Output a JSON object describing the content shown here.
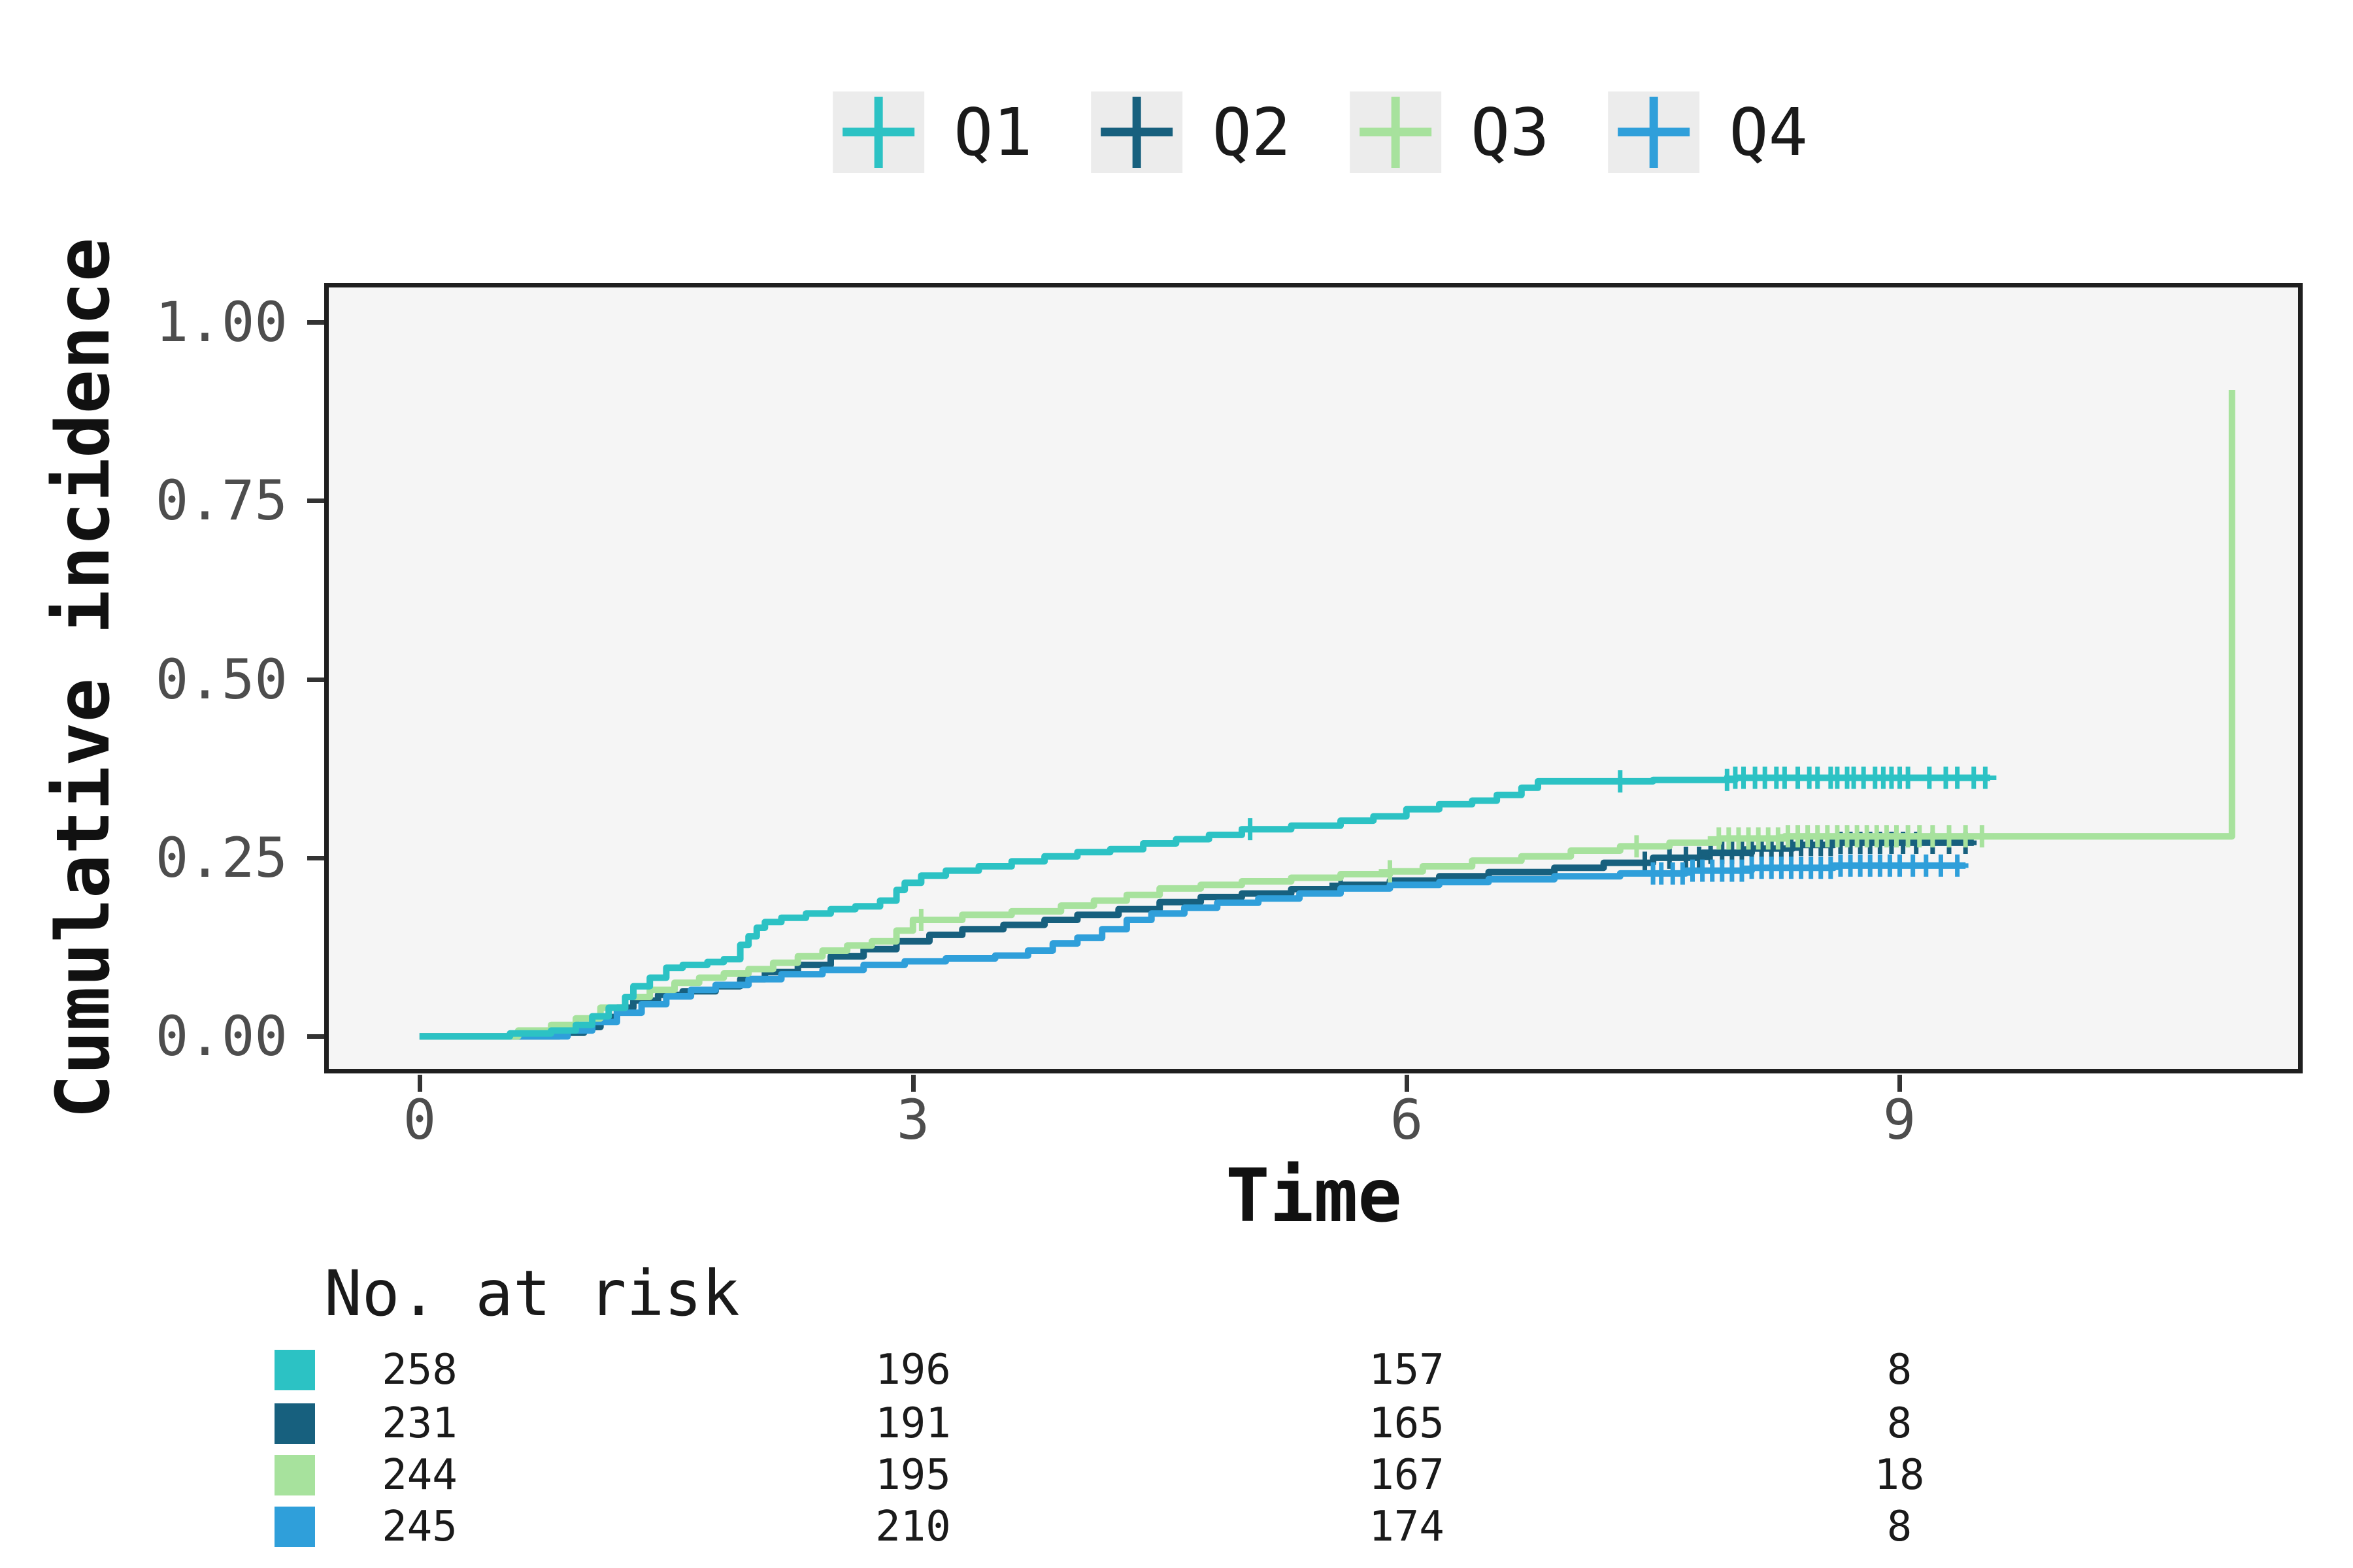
{
  "chart_data": {
    "type": "line",
    "subtype": "step-cumulative-incidence",
    "title": "",
    "xlabel": "Time",
    "ylabel": "Cumulative incidence",
    "x_ticks": [
      0,
      3,
      6,
      9
    ],
    "x_tick_labels": [
      "0",
      "3",
      "6",
      "9"
    ],
    "y_ticks": [
      0.0,
      0.25,
      0.5,
      0.75,
      1.0
    ],
    "y_tick_labels": [
      "0.00",
      "0.25",
      "0.50",
      "0.75",
      "1.00"
    ],
    "x_domain": [
      -0.58,
      11.45
    ],
    "y_domain": [
      -0.052,
      1.055
    ],
    "grid": false,
    "legend_position": "top",
    "panel_bg": "#F5F5F5",
    "frame_color": "#1F1F1F",
    "tick_color": "#333333",
    "axis_text_color": "#4D4D4D",
    "series": [
      {
        "name": "Q1",
        "color": "#2CC2C4",
        "points": [
          [
            0,
            0
          ],
          [
            0.55,
            0.004
          ],
          [
            0.8,
            0.008
          ],
          [
            0.95,
            0.016
          ],
          [
            1.05,
            0.028
          ],
          [
            1.15,
            0.04
          ],
          [
            1.25,
            0.055
          ],
          [
            1.3,
            0.07
          ],
          [
            1.4,
            0.082
          ],
          [
            1.5,
            0.096
          ],
          [
            1.6,
            0.1
          ],
          [
            1.75,
            0.104
          ],
          [
            1.85,
            0.108
          ],
          [
            1.95,
            0.128
          ],
          [
            2.0,
            0.14
          ],
          [
            2.05,
            0.152
          ],
          [
            2.1,
            0.16
          ],
          [
            2.2,
            0.166
          ],
          [
            2.35,
            0.172
          ],
          [
            2.5,
            0.178
          ],
          [
            2.65,
            0.182
          ],
          [
            2.8,
            0.19
          ],
          [
            2.9,
            0.205
          ],
          [
            2.95,
            0.215
          ],
          [
            3.05,
            0.225
          ],
          [
            3.2,
            0.232
          ],
          [
            3.4,
            0.238
          ],
          [
            3.6,
            0.245
          ],
          [
            3.8,
            0.252
          ],
          [
            4.0,
            0.258
          ],
          [
            4.2,
            0.262
          ],
          [
            4.4,
            0.27
          ],
          [
            4.6,
            0.276
          ],
          [
            4.8,
            0.282
          ],
          [
            5.0,
            0.29
          ],
          [
            5.3,
            0.295
          ],
          [
            5.6,
            0.302
          ],
          [
            5.8,
            0.308
          ],
          [
            6.0,
            0.318
          ],
          [
            6.2,
            0.325
          ],
          [
            6.4,
            0.33
          ],
          [
            6.55,
            0.338
          ],
          [
            6.7,
            0.348
          ],
          [
            6.8,
            0.357
          ],
          [
            7.5,
            0.359
          ],
          [
            8.0,
            0.362
          ]
        ],
        "end_time": 9.55,
        "censor_times": [
          5.05,
          7.3,
          7.95,
          8.0,
          8.05,
          8.12,
          8.18,
          8.25,
          8.3,
          8.38,
          8.45,
          8.5,
          8.58,
          8.62,
          8.68,
          8.72,
          8.78,
          8.85,
          8.9,
          8.95,
          9.0,
          9.05,
          9.18,
          9.28,
          9.35,
          9.45,
          9.52
        ]
      },
      {
        "name": "Q2",
        "color": "#17607E",
        "points": [
          [
            0,
            0
          ],
          [
            0.85,
            0.005
          ],
          [
            1.0,
            0.013
          ],
          [
            1.1,
            0.027
          ],
          [
            1.2,
            0.04
          ],
          [
            1.3,
            0.05
          ],
          [
            1.45,
            0.058
          ],
          [
            1.6,
            0.063
          ],
          [
            1.8,
            0.07
          ],
          [
            1.95,
            0.08
          ],
          [
            2.1,
            0.09
          ],
          [
            2.3,
            0.1
          ],
          [
            2.5,
            0.112
          ],
          [
            2.7,
            0.122
          ],
          [
            2.9,
            0.133
          ],
          [
            3.1,
            0.142
          ],
          [
            3.3,
            0.15
          ],
          [
            3.55,
            0.156
          ],
          [
            3.8,
            0.163
          ],
          [
            4.0,
            0.17
          ],
          [
            4.25,
            0.178
          ],
          [
            4.5,
            0.188
          ],
          [
            4.75,
            0.195
          ],
          [
            5.0,
            0.2
          ],
          [
            5.3,
            0.206
          ],
          [
            5.6,
            0.212
          ],
          [
            5.9,
            0.218
          ],
          [
            6.2,
            0.224
          ],
          [
            6.5,
            0.23
          ],
          [
            6.9,
            0.236
          ],
          [
            7.2,
            0.243
          ],
          [
            7.5,
            0.25
          ],
          [
            7.8,
            0.257
          ],
          [
            8.1,
            0.263
          ],
          [
            8.35,
            0.268
          ],
          [
            8.6,
            0.271
          ]
        ],
        "end_time": 9.45,
        "censor_times": [
          5.6,
          7.45,
          7.6,
          7.7,
          7.78,
          7.85,
          7.92,
          7.98,
          8.04,
          8.1,
          8.16,
          8.22,
          8.28,
          8.34,
          8.4,
          8.46,
          8.52,
          8.58,
          8.64,
          8.7,
          8.76,
          8.82,
          8.88,
          8.95,
          9.02,
          9.1,
          9.2,
          9.3,
          9.4
        ]
      },
      {
        "name": "Q3",
        "color": "#A7E29D",
        "points": [
          [
            0,
            0
          ],
          [
            0.6,
            0.008
          ],
          [
            0.8,
            0.016
          ],
          [
            0.95,
            0.025
          ],
          [
            1.1,
            0.04
          ],
          [
            1.25,
            0.055
          ],
          [
            1.4,
            0.065
          ],
          [
            1.55,
            0.075
          ],
          [
            1.7,
            0.082
          ],
          [
            1.85,
            0.088
          ],
          [
            2.0,
            0.094
          ],
          [
            2.15,
            0.103
          ],
          [
            2.3,
            0.112
          ],
          [
            2.45,
            0.12
          ],
          [
            2.6,
            0.127
          ],
          [
            2.75,
            0.133
          ],
          [
            2.9,
            0.148
          ],
          [
            3.0,
            0.163
          ],
          [
            3.3,
            0.17
          ],
          [
            3.6,
            0.175
          ],
          [
            3.9,
            0.183
          ],
          [
            4.1,
            0.19
          ],
          [
            4.3,
            0.198
          ],
          [
            4.5,
            0.207
          ],
          [
            4.75,
            0.212
          ],
          [
            5.0,
            0.217
          ],
          [
            5.3,
            0.222
          ],
          [
            5.6,
            0.227
          ],
          [
            5.9,
            0.231
          ],
          [
            6.1,
            0.238
          ],
          [
            6.4,
            0.246
          ],
          [
            6.7,
            0.252
          ],
          [
            7.0,
            0.26
          ],
          [
            7.3,
            0.266
          ],
          [
            7.6,
            0.271
          ],
          [
            7.9,
            0.277
          ],
          [
            8.3,
            0.28
          ],
          [
            11.02,
            0.905
          ]
        ],
        "end_time": null,
        "censor_times": [
          3.05,
          5.9,
          7.4,
          7.9,
          7.96,
          8.02,
          8.08,
          8.14,
          8.2,
          8.26,
          8.32,
          8.38,
          8.44,
          8.5,
          8.56,
          8.62,
          8.68,
          8.74,
          8.8,
          8.86,
          8.92,
          8.98,
          9.05,
          9.12,
          9.2,
          9.3,
          9.4,
          9.5
        ]
      },
      {
        "name": "Q4",
        "color": "#2F9FDA",
        "points": [
          [
            0,
            0
          ],
          [
            0.9,
            0.008
          ],
          [
            1.05,
            0.02
          ],
          [
            1.2,
            0.033
          ],
          [
            1.35,
            0.045
          ],
          [
            1.5,
            0.056
          ],
          [
            1.65,
            0.065
          ],
          [
            1.8,
            0.072
          ],
          [
            2.0,
            0.08
          ],
          [
            2.2,
            0.087
          ],
          [
            2.45,
            0.093
          ],
          [
            2.7,
            0.1
          ],
          [
            2.95,
            0.105
          ],
          [
            3.2,
            0.109
          ],
          [
            3.5,
            0.113
          ],
          [
            3.7,
            0.12
          ],
          [
            3.85,
            0.13
          ],
          [
            4.0,
            0.138
          ],
          [
            4.15,
            0.15
          ],
          [
            4.3,
            0.163
          ],
          [
            4.45,
            0.172
          ],
          [
            4.65,
            0.18
          ],
          [
            4.85,
            0.187
          ],
          [
            5.1,
            0.193
          ],
          [
            5.35,
            0.2
          ],
          [
            5.6,
            0.207
          ],
          [
            5.9,
            0.212
          ],
          [
            6.2,
            0.216
          ],
          [
            6.5,
            0.22
          ],
          [
            6.9,
            0.224
          ],
          [
            7.3,
            0.228
          ],
          [
            7.7,
            0.232
          ],
          [
            8.1,
            0.236
          ],
          [
            8.6,
            0.239
          ]
        ],
        "end_time": 9.4,
        "censor_times": [
          7.5,
          7.55,
          7.62,
          7.68,
          7.74,
          7.8,
          7.86,
          7.92,
          7.98,
          8.04,
          8.1,
          8.16,
          8.22,
          8.28,
          8.34,
          8.4,
          8.46,
          8.52,
          8.58,
          8.64,
          8.7,
          8.76,
          8.82,
          8.88,
          8.94,
          9.0,
          9.08,
          9.16,
          9.25,
          9.35
        ]
      }
    ],
    "risk_table": {
      "title": "No. at risk",
      "time_points": [
        0,
        3,
        6,
        9
      ],
      "rows": [
        {
          "name": "Q1",
          "color": "#2CC2C4",
          "counts": [
            258,
            196,
            157,
            8
          ]
        },
        {
          "name": "Q2",
          "color": "#17607E",
          "counts": [
            231,
            191,
            165,
            8
          ]
        },
        {
          "name": "Q3",
          "color": "#A7E29D",
          "counts": [
            244,
            195,
            167,
            18
          ]
        },
        {
          "name": "Q4",
          "color": "#2F9FDA",
          "counts": [
            245,
            210,
            174,
            8
          ]
        }
      ]
    }
  }
}
